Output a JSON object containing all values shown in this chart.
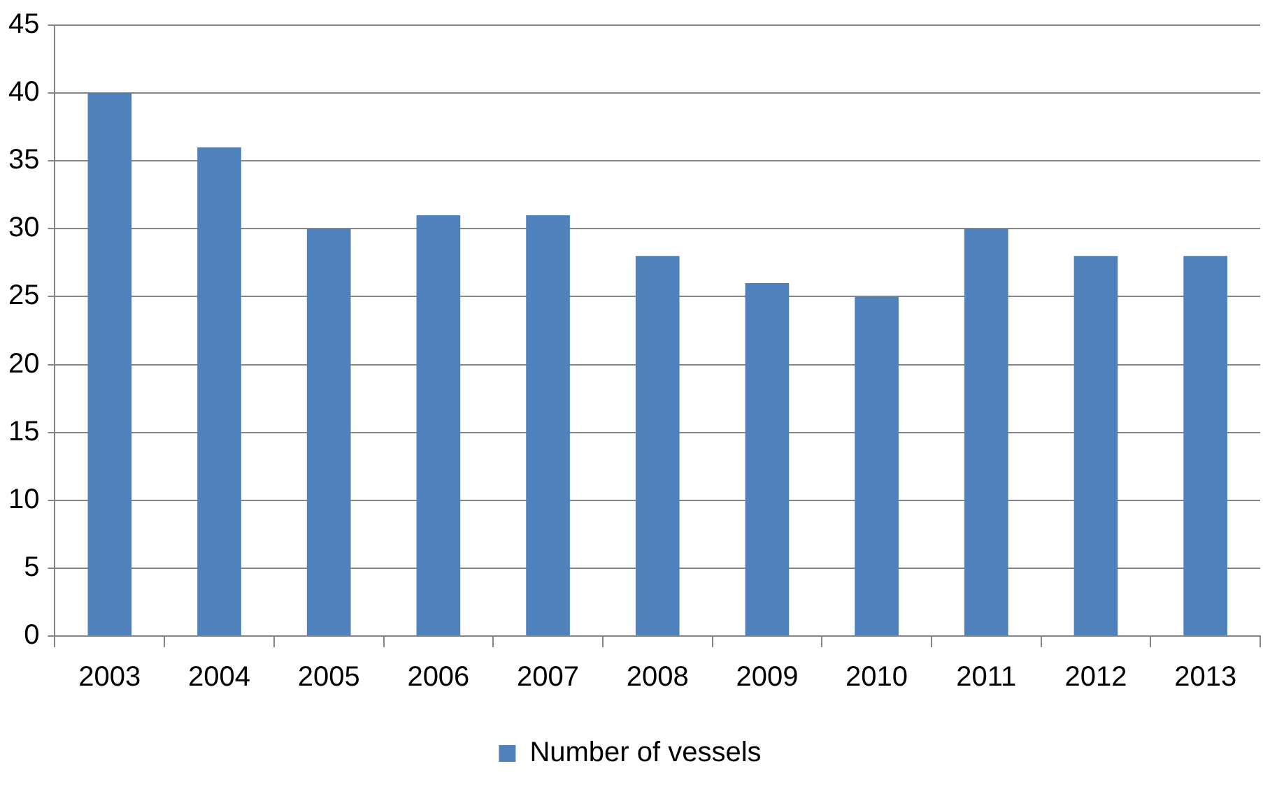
{
  "chart_data": {
    "type": "bar",
    "categories": [
      "2003",
      "2004",
      "2005",
      "2006",
      "2007",
      "2008",
      "2009",
      "2010",
      "2011",
      "2012",
      "2013"
    ],
    "series": [
      {
        "name": "Number of vessels",
        "color": "#4f81bd",
        "values": [
          40,
          36,
          30,
          31,
          31,
          28,
          26,
          25,
          30,
          28,
          28
        ]
      }
    ],
    "ylim": [
      0,
      45
    ],
    "yticks": [
      0,
      5,
      10,
      15,
      20,
      25,
      30,
      35,
      40,
      45
    ],
    "grid": "y",
    "legend": "bottom"
  }
}
